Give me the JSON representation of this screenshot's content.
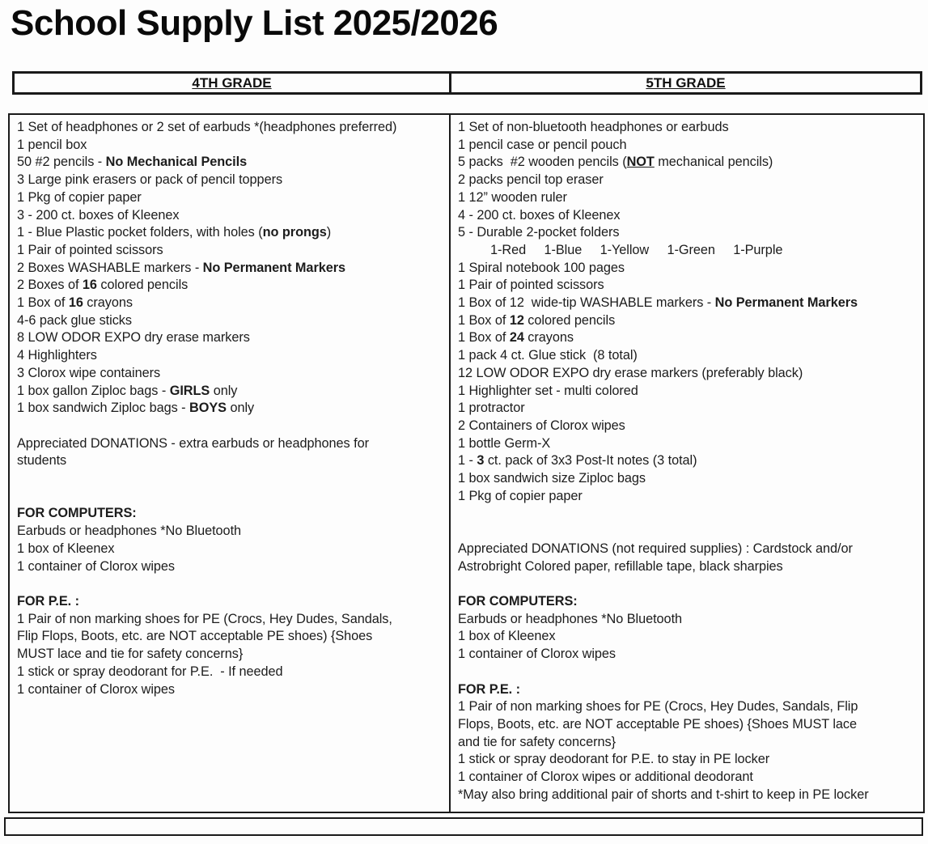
{
  "title": "School Supply List 2025/2026",
  "header": {
    "grade4_label": "4TH GRADE",
    "grade5_label": "5TH GRADE"
  },
  "colors": {
    "text": "#1c1c1c",
    "border": "#1a1a1a",
    "background": "#fdfdfd"
  },
  "columns": {
    "grade4": {
      "lines": [
        {
          "segs": [
            {
              "t": "1 Set of headphones or 2 set of earbuds *(headphones preferred)"
            }
          ]
        },
        {
          "segs": [
            {
              "t": "1 pencil box"
            }
          ]
        },
        {
          "segs": [
            {
              "t": "50 #2 pencils - "
            },
            {
              "t": "No Mechanical Pencils",
              "b": true
            }
          ]
        },
        {
          "segs": [
            {
              "t": "3 Large pink erasers or pack of pencil toppers"
            }
          ]
        },
        {
          "segs": [
            {
              "t": "1 Pkg of copier paper"
            }
          ]
        },
        {
          "segs": [
            {
              "t": "3 - 200 ct. boxes of Kleenex"
            }
          ]
        },
        {
          "segs": [
            {
              "t": "1 - Blue Plastic pocket folders, with holes ("
            },
            {
              "t": "no prongs",
              "b": true
            },
            {
              "t": ")"
            }
          ]
        },
        {
          "segs": [
            {
              "t": "1 Pair of pointed scissors"
            }
          ]
        },
        {
          "segs": [
            {
              "t": "2 Boxes WASHABLE markers - "
            },
            {
              "t": "No Permanent Markers",
              "b": true
            }
          ]
        },
        {
          "segs": [
            {
              "t": "2 Boxes of "
            },
            {
              "t": "16",
              "b": true
            },
            {
              "t": " colored pencils"
            }
          ]
        },
        {
          "segs": [
            {
              "t": "1 Box of "
            },
            {
              "t": "16",
              "b": true
            },
            {
              "t": " crayons"
            }
          ]
        },
        {
          "segs": [
            {
              "t": "4-6 pack glue sticks"
            }
          ]
        },
        {
          "segs": [
            {
              "t": "8 LOW ODOR EXPO dry erase markers"
            }
          ]
        },
        {
          "segs": [
            {
              "t": "4 Highlighters"
            }
          ]
        },
        {
          "segs": [
            {
              "t": "3 Clorox wipe containers"
            }
          ]
        },
        {
          "segs": [
            {
              "t": "1 box gallon Ziploc bags - "
            },
            {
              "t": "GIRLS",
              "b": true
            },
            {
              "t": " only"
            }
          ]
        },
        {
          "segs": [
            {
              "t": "1 box sandwich Ziploc bags - "
            },
            {
              "t": "BOYS",
              "b": true
            },
            {
              "t": " only"
            }
          ]
        },
        {
          "segs": []
        },
        {
          "segs": [
            {
              "t": "Appreciated DONATIONS - extra earbuds or headphones for"
            }
          ]
        },
        {
          "segs": [
            {
              "t": "students"
            }
          ]
        },
        {
          "segs": []
        },
        {
          "segs": []
        },
        {
          "segs": [
            {
              "t": "FOR COMPUTERS:",
              "b": true
            }
          ]
        },
        {
          "segs": [
            {
              "t": "Earbuds or headphones *No Bluetooth"
            }
          ]
        },
        {
          "segs": [
            {
              "t": "1 box of Kleenex"
            }
          ]
        },
        {
          "segs": [
            {
              "t": "1 container of Clorox wipes"
            }
          ]
        },
        {
          "segs": []
        },
        {
          "segs": [
            {
              "t": "FOR P.E. :",
              "b": true
            }
          ]
        },
        {
          "segs": [
            {
              "t": "1 Pair of non marking shoes for PE (Crocs, Hey Dudes, Sandals,"
            }
          ]
        },
        {
          "segs": [
            {
              "t": "Flip Flops, Boots, etc. are NOT acceptable PE shoes) {Shoes"
            }
          ]
        },
        {
          "segs": [
            {
              "t": "MUST lace and tie for safety concerns}"
            }
          ]
        },
        {
          "segs": [
            {
              "t": "1 stick or spray deodorant for P.E.  - If needed"
            }
          ]
        },
        {
          "segs": [
            {
              "t": "1 container of Clorox wipes"
            }
          ]
        }
      ]
    },
    "grade5": {
      "lines": [
        {
          "segs": [
            {
              "t": "1 Set of non-bluetooth headphones or earbuds"
            }
          ]
        },
        {
          "segs": [
            {
              "t": "1 pencil case or pencil pouch"
            }
          ]
        },
        {
          "segs": [
            {
              "t": "5 packs  #2 wooden pencils ("
            },
            {
              "t": "NOT",
              "b": true,
              "u": true
            },
            {
              "t": " mechanical pencils)"
            }
          ]
        },
        {
          "segs": [
            {
              "t": "2 packs pencil top eraser"
            }
          ]
        },
        {
          "segs": [
            {
              "t": "1 12” wooden ruler"
            }
          ]
        },
        {
          "segs": [
            {
              "t": "4 - 200 ct. boxes of Kleenex"
            }
          ]
        },
        {
          "segs": [
            {
              "t": "5 - Durable 2-pocket folders"
            }
          ]
        },
        {
          "indent": true,
          "segs": [
            {
              "t": "1-Red     1-Blue     1-Yellow     1-Green     1-Purple"
            }
          ]
        },
        {
          "segs": [
            {
              "t": "1 Spiral notebook 100 pages"
            }
          ]
        },
        {
          "segs": [
            {
              "t": "1 Pair of pointed scissors"
            }
          ]
        },
        {
          "segs": [
            {
              "t": "1 Box of 12  wide-tip WASHABLE markers - "
            },
            {
              "t": "No Permanent Markers",
              "b": true
            }
          ]
        },
        {
          "segs": [
            {
              "t": "1 Box of "
            },
            {
              "t": "12",
              "b": true
            },
            {
              "t": " colored pencils"
            }
          ]
        },
        {
          "segs": [
            {
              "t": "1 Box of "
            },
            {
              "t": "24",
              "b": true
            },
            {
              "t": " crayons"
            }
          ]
        },
        {
          "segs": [
            {
              "t": "1 pack 4 ct. Glue stick  (8 total)"
            }
          ]
        },
        {
          "segs": [
            {
              "t": "12 LOW ODOR EXPO dry erase markers (preferably black)"
            }
          ]
        },
        {
          "segs": [
            {
              "t": "1 Highlighter set - multi colored"
            }
          ]
        },
        {
          "segs": [
            {
              "t": "1 protractor"
            }
          ]
        },
        {
          "segs": [
            {
              "t": "2 Containers of Clorox wipes"
            }
          ]
        },
        {
          "segs": [
            {
              "t": "1 bottle Germ-X"
            }
          ]
        },
        {
          "segs": [
            {
              "t": "1 - "
            },
            {
              "t": "3",
              "b": true
            },
            {
              "t": " ct. pack of 3x3 Post-It notes (3 total)"
            }
          ]
        },
        {
          "segs": [
            {
              "t": "1 box sandwich size Ziploc bags"
            }
          ]
        },
        {
          "segs": [
            {
              "t": "1 Pkg of copier paper"
            }
          ]
        },
        {
          "segs": []
        },
        {
          "segs": []
        },
        {
          "segs": [
            {
              "t": "Appreciated DONATIONS (not required supplies) : Cardstock and/or"
            }
          ]
        },
        {
          "segs": [
            {
              "t": "Astrobright Colored paper, refillable tape, black sharpies"
            }
          ]
        },
        {
          "segs": []
        },
        {
          "segs": [
            {
              "t": "FOR COMPUTERS:",
              "b": true
            }
          ]
        },
        {
          "segs": [
            {
              "t": "Earbuds or headphones *No Bluetooth"
            }
          ]
        },
        {
          "segs": [
            {
              "t": "1 box of Kleenex"
            }
          ]
        },
        {
          "segs": [
            {
              "t": "1 container of Clorox wipes"
            }
          ]
        },
        {
          "segs": []
        },
        {
          "segs": [
            {
              "t": "FOR P.E. :",
              "b": true
            }
          ]
        },
        {
          "segs": [
            {
              "t": "1 Pair of non marking shoes for PE (Crocs, Hey Dudes, Sandals, Flip"
            }
          ]
        },
        {
          "segs": [
            {
              "t": "Flops, Boots, etc. are NOT acceptable PE shoes) {Shoes MUST lace"
            }
          ]
        },
        {
          "segs": [
            {
              "t": "and tie for safety concerns}"
            }
          ]
        },
        {
          "segs": [
            {
              "t": "1 stick or spray deodorant for P.E. to stay in PE locker"
            }
          ]
        },
        {
          "segs": [
            {
              "t": "1 container of Clorox wipes or additional deodorant"
            }
          ]
        },
        {
          "segs": [
            {
              "t": "*May also bring additional pair of shorts and t-shirt to keep in PE locker"
            }
          ]
        }
      ]
    }
  }
}
